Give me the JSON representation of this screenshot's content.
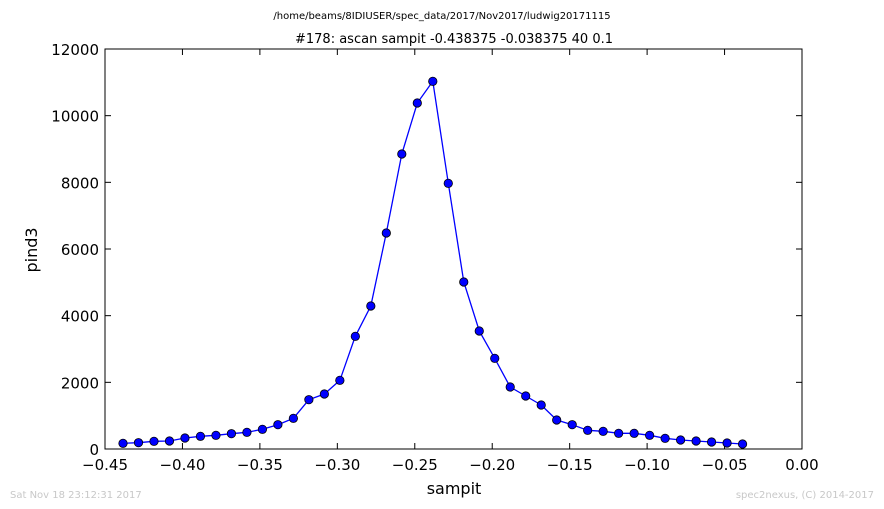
{
  "chart_data": {
    "type": "line",
    "suptitle": "/home/beams/8IDIUSER/spec_data/2017/Nov2017/ludwig20171115",
    "title": "#178: ascan  sampit -0.438375 -0.038375  40 0.1",
    "xlabel": "sampit",
    "ylabel": "pind3",
    "xlim": [
      -0.45,
      0.0
    ],
    "ylim": [
      0,
      12000
    ],
    "xticks": [
      -0.45,
      -0.4,
      -0.35,
      -0.3,
      -0.25,
      -0.2,
      -0.15,
      -0.1,
      -0.05,
      0.0
    ],
    "xtick_labels": [
      "−0.45",
      "−0.40",
      "−0.35",
      "−0.30",
      "−0.25",
      "−0.20",
      "−0.15",
      "−0.10",
      "−0.05",
      "0.00"
    ],
    "yticks": [
      0,
      2000,
      4000,
      6000,
      8000,
      10000,
      12000
    ],
    "ytick_labels": [
      "0",
      "2000",
      "4000",
      "6000",
      "8000",
      "10000",
      "12000"
    ],
    "grid": false,
    "series": [
      {
        "color": "#0000ff",
        "marker": "circle",
        "x": [
          -0.438375,
          -0.428375,
          -0.418375,
          -0.408375,
          -0.398375,
          -0.388375,
          -0.378375,
          -0.368375,
          -0.358375,
          -0.348375,
          -0.338375,
          -0.328375,
          -0.318375,
          -0.308375,
          -0.298375,
          -0.288375,
          -0.278375,
          -0.268375,
          -0.258375,
          -0.248375,
          -0.238375,
          -0.228375,
          -0.218375,
          -0.208375,
          -0.198375,
          -0.188375,
          -0.178375,
          -0.168375,
          -0.158375,
          -0.148375,
          -0.138375,
          -0.128375,
          -0.118375,
          -0.108375,
          -0.098375,
          -0.088375,
          -0.078375,
          -0.068375,
          -0.058375,
          -0.048375,
          -0.038375
        ],
        "y": [
          170,
          190,
          230,
          240,
          330,
          380,
          410,
          460,
          500,
          590,
          730,
          920,
          1480,
          1650,
          2060,
          3380,
          4290,
          6480,
          8850,
          10380,
          11030,
          7970,
          5010,
          3540,
          2720,
          1860,
          1590,
          1320,
          870,
          730,
          560,
          530,
          470,
          470,
          410,
          320,
          270,
          240,
          210,
          180,
          150
        ]
      }
    ]
  },
  "footer": {
    "left": "Sat Nov 18 23:12:31 2017",
    "right": "spec2nexus, (C) 2014-2017"
  }
}
